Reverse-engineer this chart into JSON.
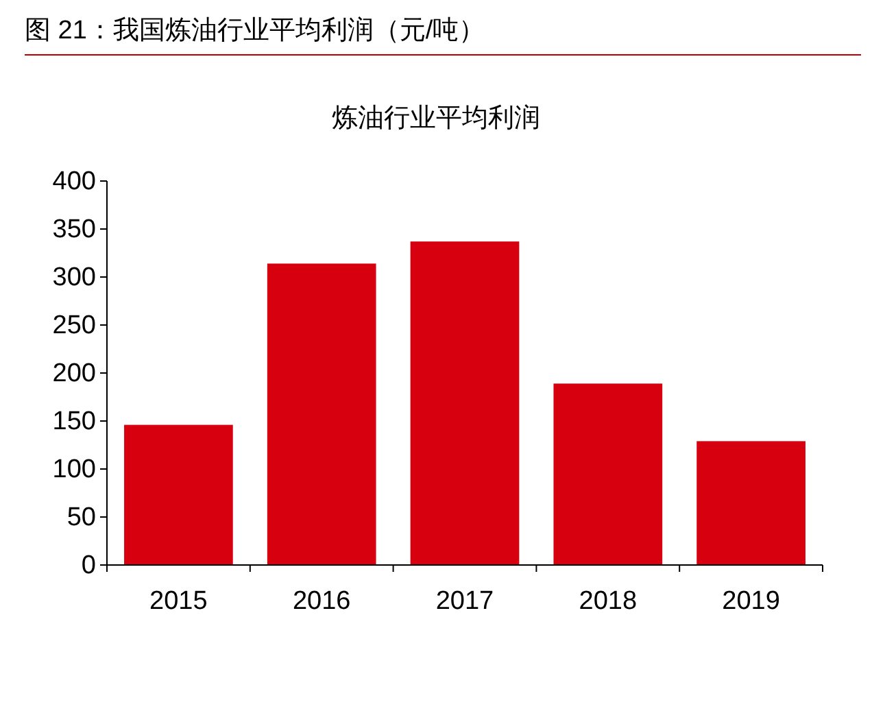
{
  "chart_data": {
    "type": "bar",
    "title": "图 21：我国炼油行业平均利润（元/吨）",
    "subtitle": "炼油行业平均利润",
    "categories": [
      "2015",
      "2016",
      "2017",
      "2018",
      "2019"
    ],
    "values": [
      146,
      314,
      337,
      189,
      129
    ],
    "color": "#d7000f",
    "ylim": [
      0,
      400
    ],
    "yticks": [
      0,
      50,
      100,
      150,
      200,
      250,
      300,
      350,
      400
    ]
  }
}
